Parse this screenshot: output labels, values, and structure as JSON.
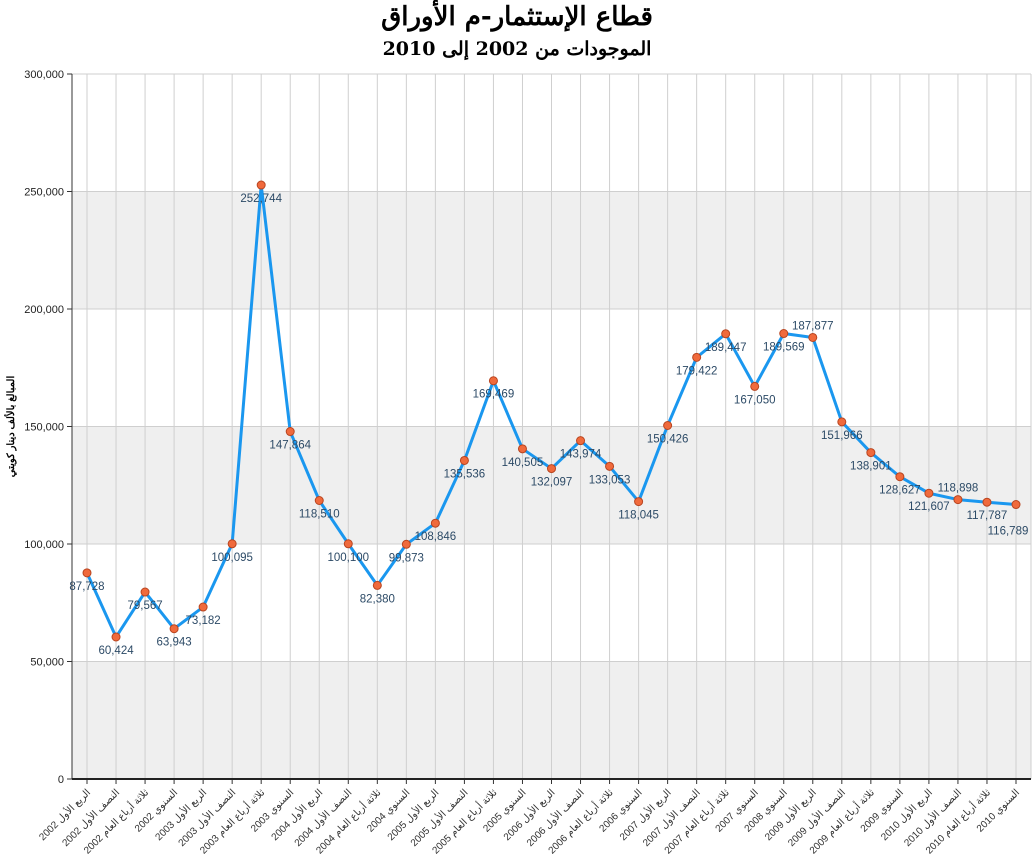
{
  "chart_data": {
    "type": "line",
    "title": "قطاع الإستثمار-م الأوراق",
    "subtitle": "الموجودات من 2002 إلى 2010",
    "xlabel": "",
    "ylabel": "المبالغ بالألف دينار كويتي",
    "ylim": [
      0,
      300000
    ],
    "yticks": [
      "0",
      "50,000",
      "100,000",
      "150,000",
      "200,000",
      "250,000",
      "300,000"
    ],
    "grid": true,
    "line_color": "#1a97ef",
    "marker_color": "#f06a3c",
    "categories": [
      "الربع الأول 2002",
      "النصف الأول 2002",
      "ثلاثة أرباع العام 2002",
      "السنوي 2002",
      "الربع الأول 2003",
      "النصف الأول 2003",
      "ثلاثة أرباع العام 2003",
      "السنوي 2003",
      "الربع الأول 2004",
      "النصف الأول 2004",
      "ثلاثة أرباع العام 2004",
      "السنوي 2004",
      "الربع الأول 2005",
      "النصف الأول 2005",
      "ثلاثة أرباع العام 2005",
      "السنوي 2005",
      "الربع الأول 2006",
      "النصف الأول 2006",
      "ثلاثة أرباع العام 2006",
      "السنوي 2006",
      "الربع الأول 2007",
      "النصف الأول 2007",
      "ثلاثة أرباع العام 2007",
      "السنوي 2007",
      "السنوي 2008",
      "الربع الأول 2009",
      "النصف الأول 2009",
      "ثلاثة أرباع العام 2009",
      "السنوي 2009",
      "الربع الأول 2010",
      "النصف الأول 2010",
      "ثلاثة أرباع العام 2010",
      "السنوي 2010"
    ],
    "values": [
      87728,
      60424,
      79567,
      63943,
      73182,
      100095,
      252744,
      147864,
      118510,
      100100,
      82380,
      99873,
      108846,
      135536,
      169469,
      140505,
      132097,
      143974,
      133053,
      118045,
      150426,
      179422,
      189447,
      167050,
      189569,
      187877,
      151966,
      138901,
      128627,
      121607,
      118898,
      117787,
      116789
    ],
    "data_labels": [
      "87,728",
      "60,424",
      "79,567",
      "63,943",
      "73,182",
      "100,095",
      "252,744",
      "147,864",
      "118,510",
      "100,100",
      "82,380",
      "99,873",
      "108,846",
      "135,536",
      "169,469",
      "140,505",
      "132,097",
      "143,974",
      "133,053",
      "118,045",
      "150,426",
      "179,422",
      "189,447",
      "167,050",
      "189,569",
      "187,877",
      "151,966",
      "138,901",
      "128,627",
      "121,607",
      "118,898",
      "117,787",
      "116,789"
    ]
  }
}
